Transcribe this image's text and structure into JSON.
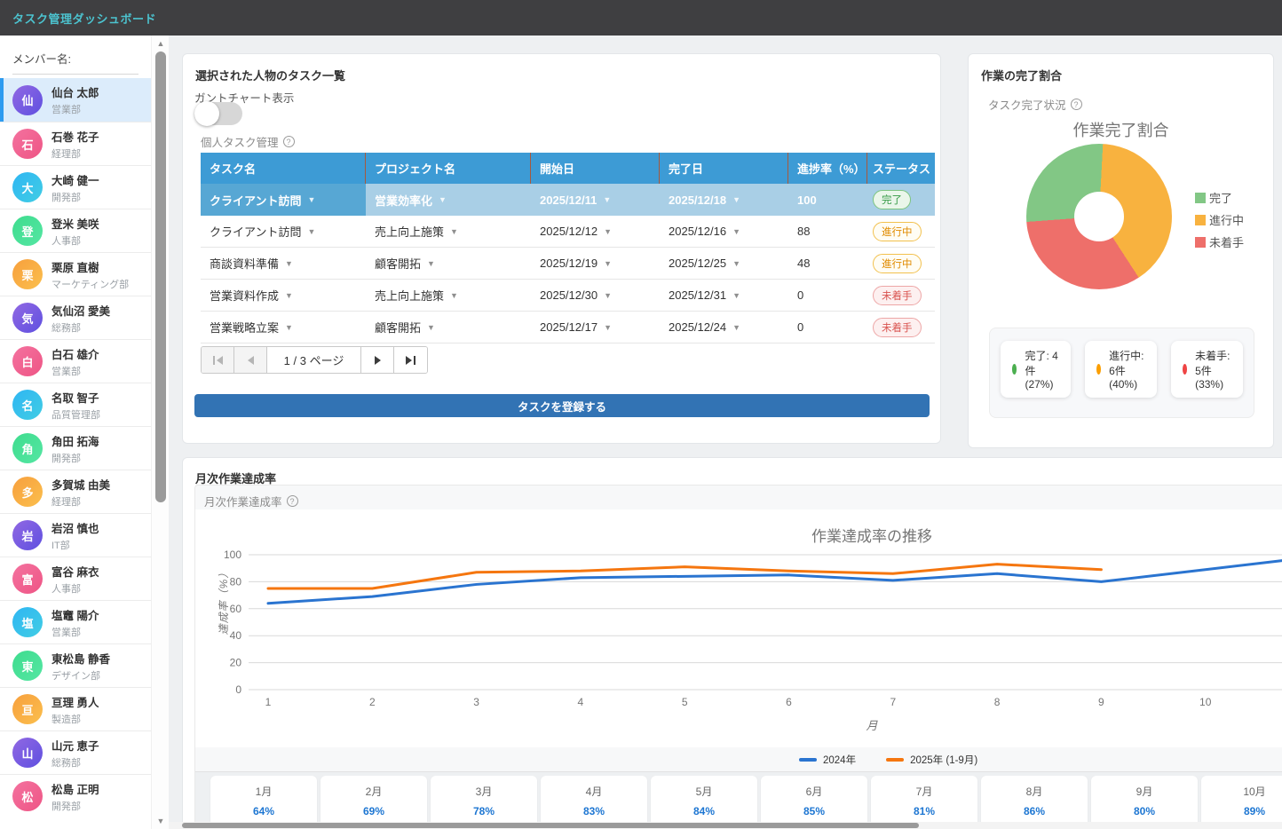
{
  "app": {
    "title": "タスク管理ダッシュボード"
  },
  "theme": {
    "header_bg": "#3f3f41",
    "header_title_color": "#4cc3cf",
    "accent_blue": "#3273b4",
    "table_header_blue": "#3d9bd5",
    "selected_row_blue": "#57a7d4",
    "status_colors": {
      "done": "#359a46",
      "progress": "#e08b00",
      "todo": "#d9534f"
    }
  },
  "sidebar": {
    "label": "メンバー名:",
    "members": [
      {
        "initial": "仙",
        "name": "仙台 太郎",
        "dept": "営業部",
        "palette": "purple",
        "selected": true
      },
      {
        "initial": "石",
        "name": "石巻 花子",
        "dept": "経理部",
        "palette": "pink",
        "selected": false
      },
      {
        "initial": "大",
        "name": "大崎 健一",
        "dept": "開発部",
        "palette": "cyan",
        "selected": false
      },
      {
        "initial": "登",
        "name": "登米 美咲",
        "dept": "人事部",
        "palette": "green",
        "selected": false
      },
      {
        "initial": "栗",
        "name": "栗原 直樹",
        "dept": "マーケティング部",
        "palette": "orange",
        "selected": false
      },
      {
        "initial": "気",
        "name": "気仙沼 愛美",
        "dept": "総務部",
        "palette": "purple",
        "selected": false
      },
      {
        "initial": "白",
        "name": "白石 雄介",
        "dept": "営業部",
        "palette": "pink",
        "selected": false
      },
      {
        "initial": "名",
        "name": "名取 智子",
        "dept": "品質管理部",
        "palette": "cyan",
        "selected": false
      },
      {
        "initial": "角",
        "name": "角田 拓海",
        "dept": "開発部",
        "palette": "green",
        "selected": false
      },
      {
        "initial": "多",
        "name": "多賀城 由美",
        "dept": "経理部",
        "palette": "orange",
        "selected": false
      },
      {
        "initial": "岩",
        "name": "岩沼 慎也",
        "dept": "IT部",
        "palette": "purple",
        "selected": false
      },
      {
        "initial": "富",
        "name": "富谷 麻衣",
        "dept": "人事部",
        "palette": "pink",
        "selected": false
      },
      {
        "initial": "塩",
        "name": "塩竈 陽介",
        "dept": "営業部",
        "palette": "cyan",
        "selected": false
      },
      {
        "initial": "東",
        "name": "東松島 静香",
        "dept": "デザイン部",
        "palette": "green",
        "selected": false
      },
      {
        "initial": "亘",
        "name": "亘理 勇人",
        "dept": "製造部",
        "palette": "orange",
        "selected": false
      },
      {
        "initial": "山",
        "name": "山元 恵子",
        "dept": "総務部",
        "palette": "purple",
        "selected": false
      },
      {
        "initial": "松",
        "name": "松島 正明",
        "dept": "開発部",
        "palette": "pink",
        "selected": false
      }
    ]
  },
  "task_panel": {
    "title": "選択された人物のタスク一覧",
    "gantt_toggle_label": "ガントチャート表示",
    "gantt_toggle_on": false,
    "table_caption": "個人タスク管理",
    "help_icon": "?",
    "columns": [
      "タスク名",
      "プロジェクト名",
      "開始日",
      "完了日",
      "進捗率（%）",
      "ステータス"
    ],
    "rows": [
      {
        "task": "クライアント訪問",
        "project": "営業効率化",
        "start": "2025/12/11",
        "end": "2025/12/18",
        "progress": "100",
        "status": "完了",
        "status_type": "done",
        "selected": true
      },
      {
        "task": "クライアント訪問",
        "project": "売上向上施策",
        "start": "2025/12/12",
        "end": "2025/12/16",
        "progress": "88",
        "status": "進行中",
        "status_type": "progress",
        "selected": false
      },
      {
        "task": "商談資料準備",
        "project": "顧客開拓",
        "start": "2025/12/19",
        "end": "2025/12/25",
        "progress": "48",
        "status": "進行中",
        "status_type": "progress",
        "selected": false
      },
      {
        "task": "営業資料作成",
        "project": "売上向上施策",
        "start": "2025/12/30",
        "end": "2025/12/31",
        "progress": "0",
        "status": "未着手",
        "status_type": "todo",
        "selected": false
      },
      {
        "task": "営業戦略立案",
        "project": "顧客開拓",
        "start": "2025/12/17",
        "end": "2025/12/24",
        "progress": "0",
        "status": "未着手",
        "status_type": "todo",
        "selected": false
      }
    ],
    "pagination": {
      "label": "1 / 3 ページ"
    },
    "register_button": "タスクを登録する"
  },
  "pie_panel": {
    "title": "作業の完了割合",
    "subtitle": "タスク完了状況",
    "help_icon": "?",
    "badges": [
      {
        "color": "#4caf50",
        "label": "完了: 4件 (27%)"
      },
      {
        "color": "#fb9e00",
        "label": "進行中: 6件 (40%)"
      },
      {
        "color": "#ef4444",
        "label": "未着手: 5件 (33%)"
      }
    ]
  },
  "monthly_panel": {
    "title": "月次作業達成率",
    "subtitle": "月次作業達成率",
    "help_icon": "?",
    "legend": [
      {
        "label": "2024年",
        "color": "#2a74d0"
      },
      {
        "label": "2025年 (1-9月)",
        "color": "#f5760f"
      }
    ],
    "months": [
      {
        "label": "1月",
        "y2024": "64%",
        "y2025": "75%"
      },
      {
        "label": "2月",
        "y2024": "69%",
        "y2025": "75%"
      },
      {
        "label": "3月",
        "y2024": "78%",
        "y2025": "87%"
      },
      {
        "label": "4月",
        "y2024": "83%",
        "y2025": "88%"
      },
      {
        "label": "5月",
        "y2024": "84%",
        "y2025": "91%"
      },
      {
        "label": "6月",
        "y2024": "85%",
        "y2025": "88%"
      },
      {
        "label": "7月",
        "y2024": "81%",
        "y2025": "86%"
      },
      {
        "label": "8月",
        "y2024": "86%",
        "y2025": "93%"
      },
      {
        "label": "9月",
        "y2024": "80%",
        "y2025": "89%"
      },
      {
        "label": "10月",
        "y2024": "89%",
        "y2025": "-"
      }
    ]
  },
  "chart_data": [
    {
      "type": "pie",
      "donut": true,
      "title": "作業完了割合",
      "labels": [
        "完了",
        "進行中",
        "未着手"
      ],
      "values": [
        4,
        6,
        5
      ],
      "percents": [
        27,
        40,
        33
      ],
      "colors": [
        "#82c785",
        "#f8b23f",
        "#ee6f6a"
      ],
      "legend": [
        {
          "label": "完了",
          "color": "#82c785"
        },
        {
          "label": "進行中",
          "color": "#f8b23f"
        },
        {
          "label": "未着手",
          "color": "#ee6f6a"
        }
      ],
      "legend_position": "right",
      "draw_order": [
        1,
        2,
        0
      ],
      "start_angle": 3
    },
    {
      "type": "line",
      "title": "作業達成率の推移",
      "xlabel": "月",
      "ylabel": "達成率（%）",
      "x_visible": [
        1,
        2,
        3,
        4,
        5,
        6,
        7,
        8,
        9,
        10
      ],
      "ylim": [
        0,
        100
      ],
      "grid": true,
      "legend_position": "bottom",
      "series": [
        {
          "name": "2024年",
          "color": "#2a74d0",
          "values": [
            64,
            69,
            78,
            83,
            84,
            85,
            81,
            86,
            80,
            89
          ],
          "clipped_at_right": true
        },
        {
          "name": "2025年 (1-9月)",
          "color": "#f5760f",
          "values": [
            75,
            75,
            87,
            88,
            91,
            88,
            86,
            93,
            89
          ],
          "clipped_at_right": false
        }
      ]
    }
  ]
}
